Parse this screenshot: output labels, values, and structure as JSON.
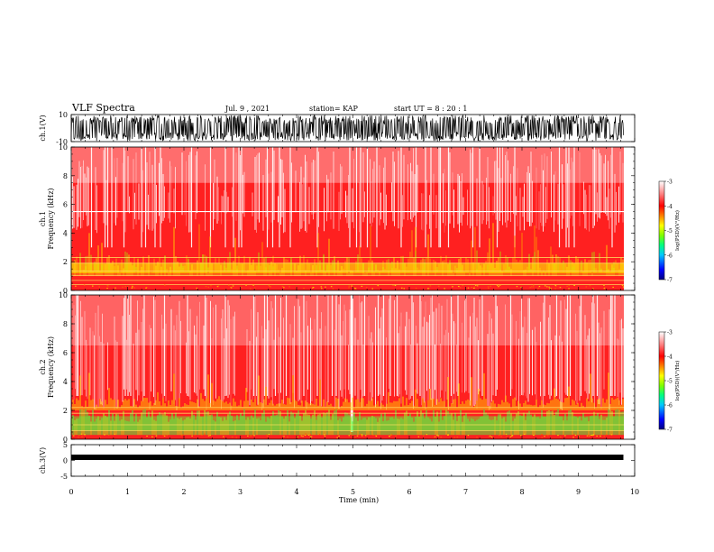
{
  "header": {
    "title": "VLF Spectra",
    "date": "Jul. 9 , 2021",
    "station": "station= KAP",
    "start": "start UT =  8 : 20 : 1"
  },
  "colors": {
    "background": "#ffffff",
    "axis": "#000000",
    "trace": "#000000"
  },
  "chart_data": [
    {
      "type": "line",
      "ylabel": "ch.1(V)",
      "ylim": [
        -10,
        10
      ],
      "yticks": [
        10,
        -10
      ],
      "xlim": [
        0,
        10
      ],
      "note": "dense black waveform spanning roughly -9 to 9 V"
    },
    {
      "type": "heatmap",
      "ylabel": "ch.1 Frequency (kHz)",
      "ylim": [
        0,
        10
      ],
      "yticks": [
        0,
        2,
        4,
        6,
        8,
        10
      ],
      "xlim": [
        0,
        10
      ],
      "colorbar": {
        "label": "log(PSD)(V²/Hz)",
        "range": [
          -7,
          -3
        ],
        "ticks": [
          -3,
          -4,
          -5,
          -6,
          -7
        ],
        "colors": [
          "#000080",
          "#0000ff",
          "#00c8ff",
          "#00ff80",
          "#80ff00",
          "#ffff00",
          "#ff8000",
          "#ff0000",
          "#ffffff"
        ]
      },
      "features": {
        "band_top_khz": 5.5,
        "dense_band_khz": [
          1.0,
          2.5
        ]
      }
    },
    {
      "type": "heatmap",
      "ylabel": "ch.2 Frequency (kHz)",
      "ylim": [
        0,
        10
      ],
      "yticks": [
        0,
        2,
        4,
        6,
        8,
        10
      ],
      "xlim": [
        0,
        10
      ],
      "colorbar": {
        "label": "log(PSD)(V²/Hz)",
        "range": [
          -7,
          -3
        ],
        "ticks": [
          -3,
          -4,
          -5,
          -6,
          -7
        ],
        "colors": [
          "#000080",
          "#0000ff",
          "#00c8ff",
          "#00ff80",
          "#80ff00",
          "#ffff00",
          "#ff8000",
          "#ff0000",
          "#ffffff"
        ]
      },
      "features": {
        "green_band_khz": [
          0.3,
          2.0
        ],
        "yellow_band_top_khz": 2.8
      }
    },
    {
      "type": "line",
      "ylabel": "ch.3(V)",
      "ylim": [
        -5,
        5
      ],
      "yticks": [
        5,
        0,
        -5
      ],
      "xlabel": "Time (min)",
      "xlim": [
        0,
        10
      ],
      "xticks": [
        0,
        1,
        2,
        3,
        4,
        5,
        6,
        7,
        8,
        9,
        10
      ],
      "data_end_min": 9.8,
      "level_v": 1.0
    }
  ]
}
